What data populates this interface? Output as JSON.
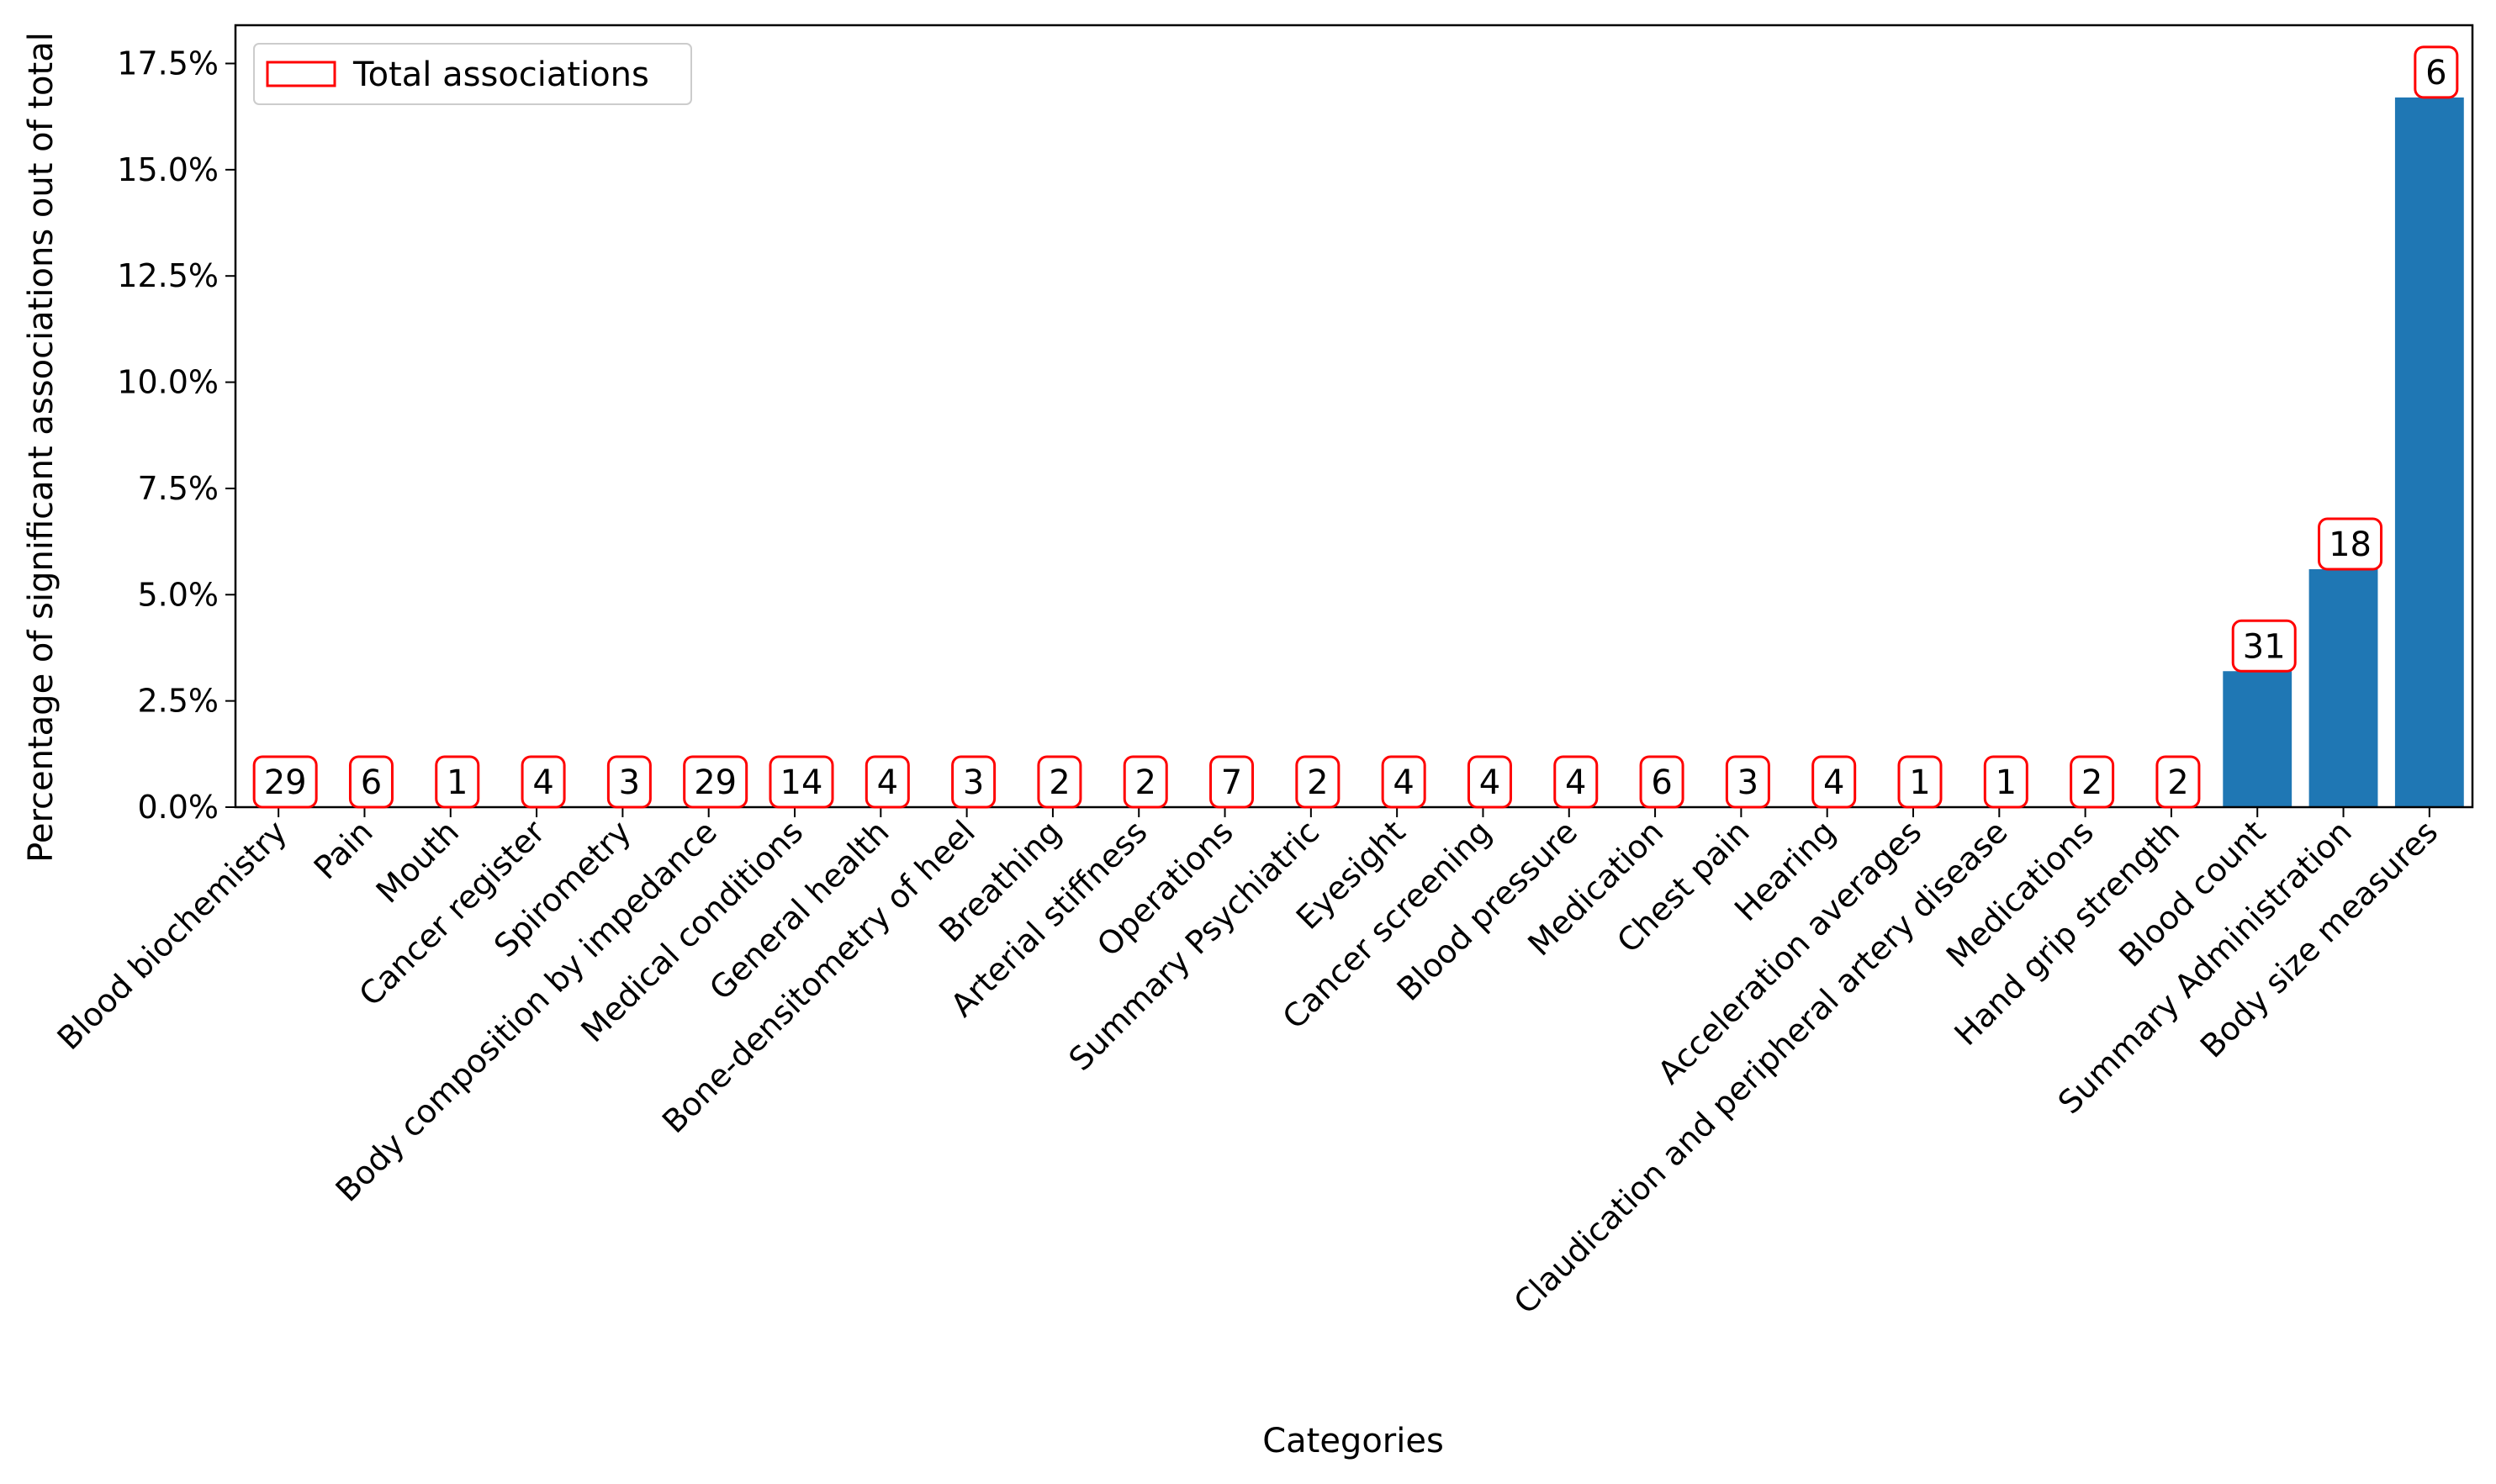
{
  "chart_data": {
    "type": "bar",
    "title": "",
    "xlabel": "Categories",
    "ylabel": "Percentage of significant associations out of total",
    "ylim": [
      0,
      18.4
    ],
    "yticks": [
      "0.0%",
      "2.5%",
      "5.0%",
      "7.5%",
      "10.0%",
      "12.5%",
      "15.0%",
      "17.5%"
    ],
    "grid": false,
    "legend": {
      "placement": "top-left",
      "entries": [
        "Total associations"
      ]
    },
    "colors": {
      "bar": "#1f77b4",
      "annotation_border": "#ff0000"
    },
    "categories": [
      "Blood biochemistry",
      "Pain",
      "Mouth",
      "Cancer register",
      "Spirometry",
      "Body composition by impedance",
      "Medical conditions",
      "General health",
      "Bone-densitometry of heel",
      "Breathing",
      "Arterial stiffness",
      "Operations",
      "Summary Psychiatric",
      "Eyesight",
      "Cancer screening",
      "Blood pressure",
      "Medication",
      "Chest pain",
      "Hearing",
      "Acceleration averages",
      "Claudication and peripheral artery disease",
      "Medications",
      "Hand grip strength",
      "Blood count",
      "Summary Administration",
      "Body size measures"
    ],
    "series": [
      {
        "values": [
          0,
          0,
          0,
          0,
          0,
          0,
          0,
          0,
          0,
          0,
          0,
          0,
          0,
          0,
          0,
          0,
          0,
          0,
          0,
          0,
          0,
          0,
          0,
          3.2,
          5.6,
          16.7
        ]
      }
    ],
    "annotations": [
      "29",
      "6",
      "1",
      "4",
      "3",
      "29",
      "14",
      "4",
      "3",
      "2",
      "2",
      "7",
      "2",
      "4",
      "4",
      "4",
      "6",
      "3",
      "4",
      "1",
      "1",
      "2",
      "2",
      "31",
      "18",
      "6"
    ]
  }
}
